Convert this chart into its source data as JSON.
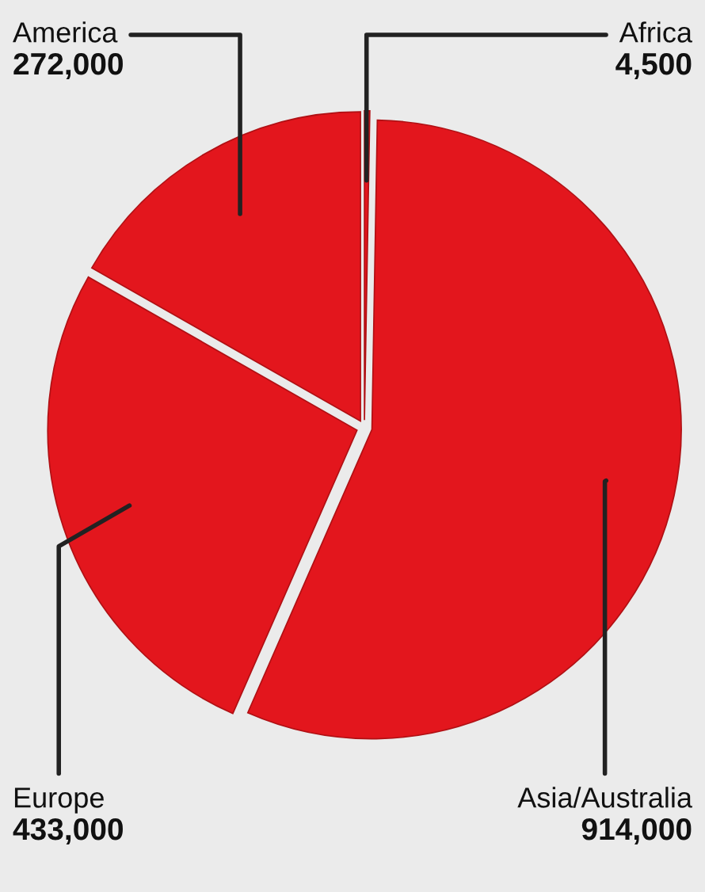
{
  "chart_data": {
    "type": "pie",
    "categories": [
      "Africa",
      "Asia/Australia",
      "Europe",
      "America"
    ],
    "values": [
      4500,
      914000,
      433000,
      272000
    ],
    "value_labels": [
      "4,500",
      "914,000",
      "433,000",
      "272,000"
    ],
    "colors": [
      "#e3161d",
      "#e3161d",
      "#e3161d",
      "#e3161d"
    ],
    "legend": false
  }
}
